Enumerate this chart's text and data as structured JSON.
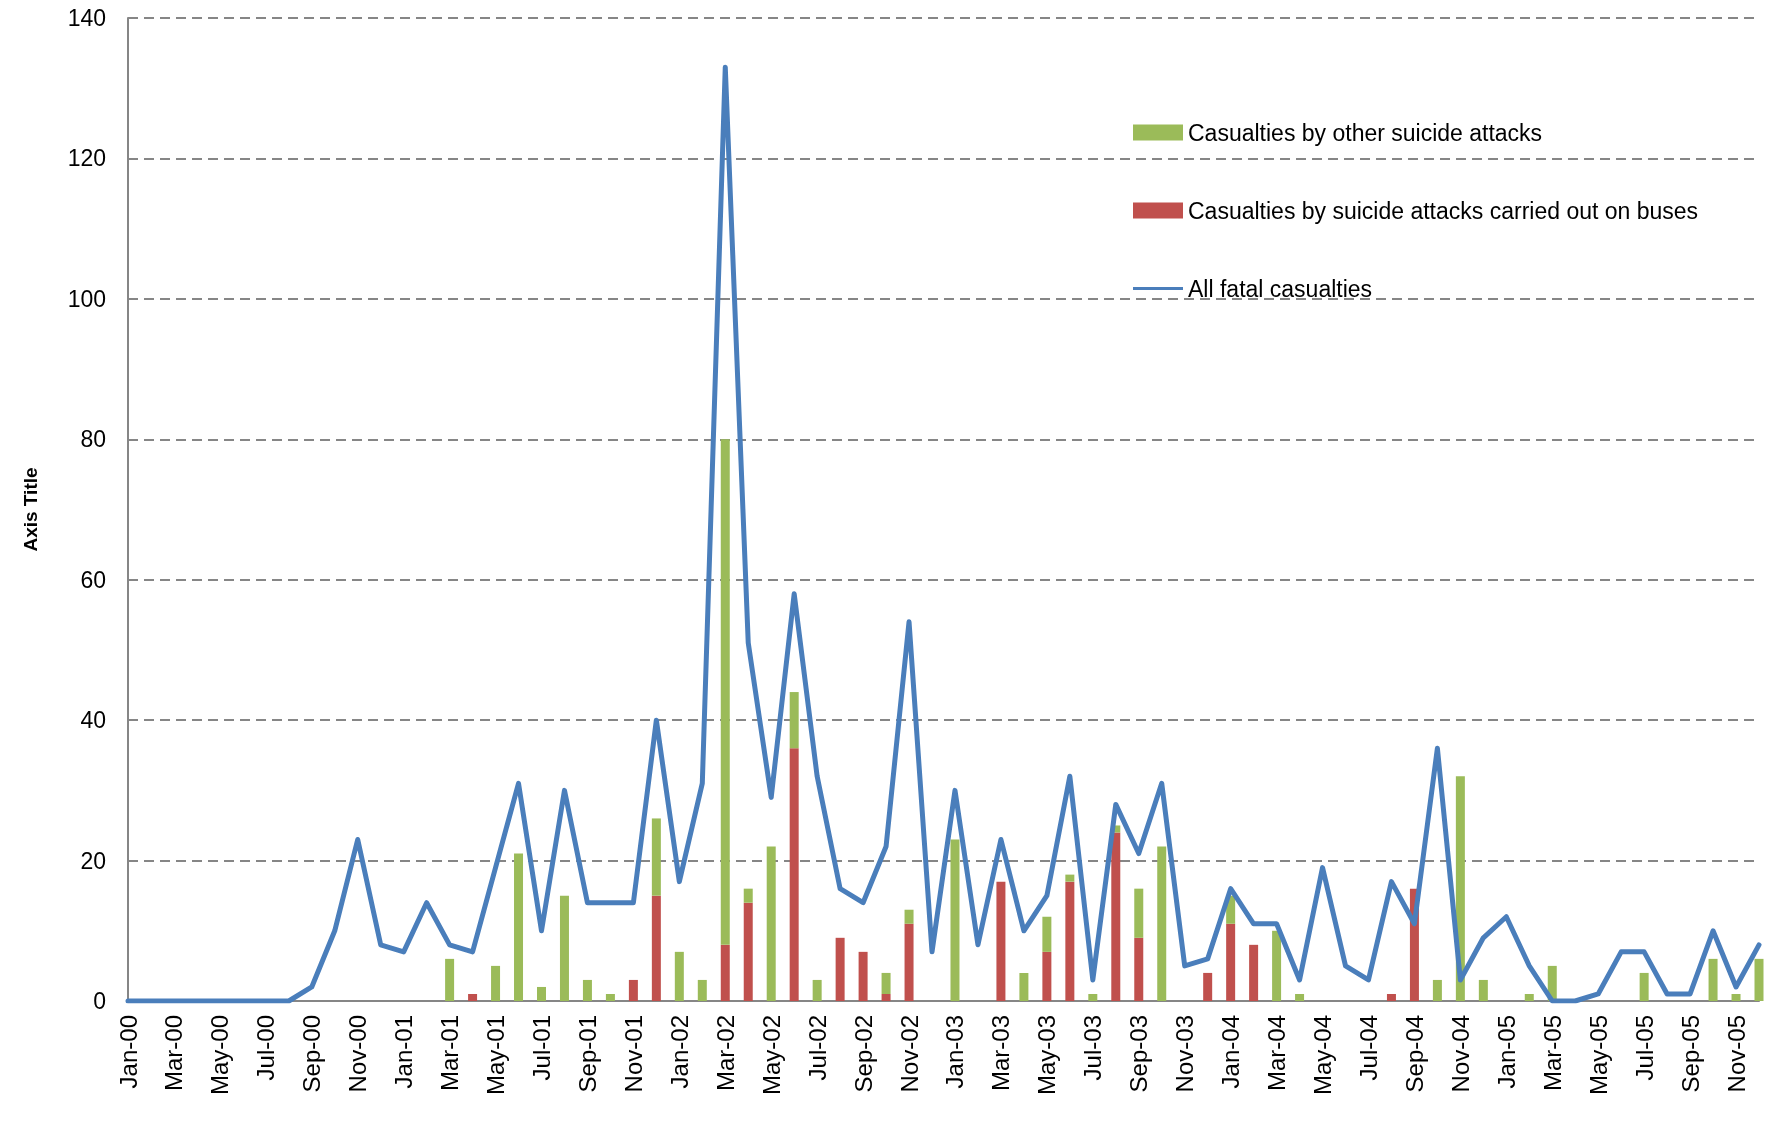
{
  "chart_data": {
    "type": "bar",
    "stacked": true,
    "ylabel": "Axis Title",
    "categories": [
      "Jan-00",
      null,
      "Mar-00",
      null,
      "May-00",
      null,
      "Jul-00",
      null,
      "Sep-00",
      null,
      "Nov-00",
      null,
      "Jan-01",
      null,
      "Mar-01",
      null,
      "May-01",
      null,
      "Jul-01",
      null,
      "Sep-01",
      null,
      "Nov-01",
      null,
      "Jan-02",
      null,
      "Mar-02",
      null,
      "May-02",
      null,
      "Jul-02",
      null,
      "Sep-02",
      null,
      "Nov-02",
      null,
      "Jan-03",
      null,
      "Mar-03",
      null,
      "May-03",
      null,
      "Jul-03",
      null,
      "Sep-03",
      null,
      "Nov-03",
      null,
      "Jan-04",
      null,
      "Mar-04",
      null,
      "May-04",
      null,
      "Jul-04",
      null,
      "Sep-04",
      null,
      "Nov-04",
      null,
      "Jan-05",
      null,
      "Mar-05",
      null,
      "May-05",
      null,
      "Jul-05",
      null,
      "Sep-05",
      null,
      "Nov-05",
      null
    ],
    "series": [
      {
        "name": "Casualties by suicide attacks carried out on buses",
        "color": "#c0504d",
        "values": [
          0,
          0,
          0,
          0,
          0,
          0,
          0,
          0,
          0,
          0,
          0,
          0,
          0,
          0,
          0,
          1,
          0,
          0,
          0,
          0,
          0,
          0,
          3,
          15,
          0,
          0,
          8,
          14,
          0,
          36,
          0,
          9,
          7,
          1,
          11,
          0,
          0,
          0,
          17,
          0,
          7,
          17,
          0,
          24,
          9,
          0,
          0,
          4,
          11,
          8,
          0,
          0,
          0,
          0,
          0,
          1,
          16,
          0,
          0,
          0,
          0,
          0,
          0,
          0,
          0,
          0,
          0,
          0,
          0,
          0,
          0,
          0
        ]
      },
      {
        "name": "Casualties by other suicide attacks",
        "color": "#9bbb59",
        "values": [
          0,
          0,
          0,
          0,
          0,
          0,
          0,
          0,
          0,
          0,
          0,
          0,
          0,
          0,
          6,
          0,
          5,
          21,
          2,
          15,
          3,
          1,
          0,
          11,
          7,
          3,
          72,
          2,
          22,
          8,
          3,
          0,
          0,
          3,
          2,
          0,
          23,
          0,
          0,
          4,
          5,
          1,
          1,
          1,
          7,
          22,
          0,
          0,
          4,
          0,
          10,
          1,
          0,
          0,
          0,
          0,
          0,
          3,
          32,
          3,
          0,
          1,
          5,
          0,
          0,
          0,
          4,
          0,
          0,
          6,
          1,
          6
        ]
      },
      {
        "name": "All fatal casualties",
        "type": "line",
        "color": "#4a7ebb",
        "marker": "none",
        "line_style": "solid",
        "values": [
          0,
          0,
          0,
          0,
          0,
          0,
          0,
          0,
          2,
          10,
          23,
          8,
          7,
          14,
          8,
          7,
          19,
          31,
          10,
          30,
          14,
          14,
          14,
          40,
          17,
          31,
          133,
          51,
          29,
          58,
          32,
          16,
          14,
          22,
          54,
          7,
          30,
          8,
          23,
          10,
          15,
          32,
          3,
          28,
          21,
          31,
          5,
          6,
          16,
          11,
          11,
          3,
          19,
          5,
          3,
          17,
          11,
          36,
          3,
          9,
          12,
          5,
          0,
          0,
          1,
          7,
          7,
          1,
          1,
          10,
          2,
          8
        ]
      }
    ],
    "ylim": [
      0,
      140
    ],
    "yticks": [
      0,
      20,
      40,
      60,
      80,
      100,
      120,
      140
    ],
    "grid": "y",
    "legend": "top right"
  }
}
